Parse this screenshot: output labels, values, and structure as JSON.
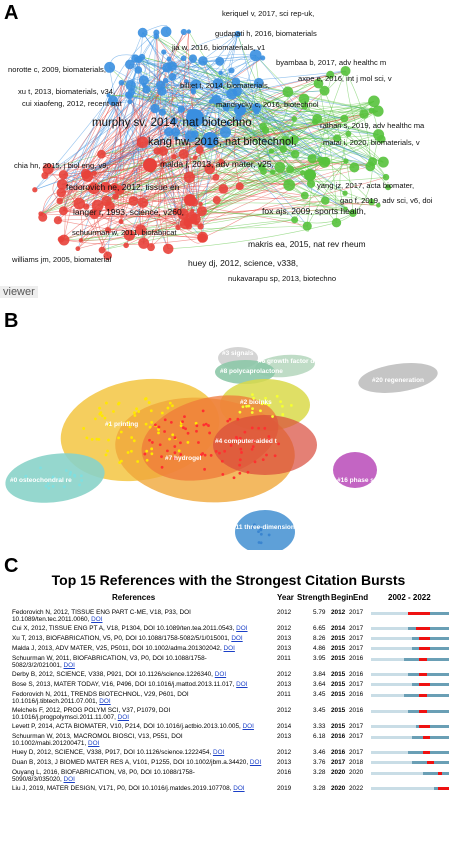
{
  "panel_a": {
    "letter": "A",
    "watermark": "viewer",
    "labels": [
      {
        "text": "keriquel v, 2017, sci rep-uk,"
      },
      {
        "text": "gudapati h, 2016, biomaterials"
      },
      {
        "text": "jia w, 2016, biomaterials, v1"
      },
      {
        "text": "byambaa b, 2017, adv healthc m"
      },
      {
        "text": "norotte c, 2009, biomaterials,"
      },
      {
        "text": "axpe e, 2016, int j mol sci, v"
      },
      {
        "text": "billiet t, 2014, biomaterials,"
      },
      {
        "text": "xu t, 2013, biomaterials, v34,"
      },
      {
        "text": "mandrycky c, 2016, biotechnol"
      },
      {
        "text": "cui xiaofeng, 2012, recent pat"
      },
      {
        "text": "murphy sv, 2014, nat biotechno"
      },
      {
        "text": "rathan s, 2019, adv healthc ma"
      },
      {
        "text": "kang hw, 2016, nat biotechnol,"
      },
      {
        "text": "matai i, 2020, biomaterials, v"
      },
      {
        "text": "chia hn, 2015, j biol eng, v9,"
      },
      {
        "text": "malda j, 2013, adv mater, v25,"
      },
      {
        "text": "fedorovich ne, 2012, tissue en"
      },
      {
        "text": "yang jz, 2017, acta biomater,"
      },
      {
        "text": "fox ajs, 2009, sports health,"
      },
      {
        "text": "gao f, 2019, adv sci, v6, doi"
      },
      {
        "text": "langer r, 1993, science, v260,"
      },
      {
        "text": "schuurman w, 2011, biofabricat"
      },
      {
        "text": "makris ea, 2015, nat rev rheum"
      },
      {
        "text": "huey dj, 2012, science, v338,"
      },
      {
        "text": "williams jm, 2005, biomaterial"
      },
      {
        "text": "nukavarapu sp, 2013, biotechno"
      }
    ]
  },
  "panel_b": {
    "letter": "B",
    "clusters": [
      {
        "label": "#3 signals"
      },
      {
        "label": "#6 growth factor de"
      },
      {
        "label": "#8 polycaprolactone"
      },
      {
        "label": "#20 regeneration"
      },
      {
        "label": "#2 bioinks"
      },
      {
        "label": "#1 printing"
      },
      {
        "label": "#4 computer-aided t"
      },
      {
        "label": "#7 hydrogel"
      },
      {
        "label": "#16 phase separation"
      },
      {
        "label": "#0 osteochondral re"
      },
      {
        "label": "#11 three-dimension"
      }
    ]
  },
  "panel_c": {
    "letter": "C",
    "title": "Top 15 References with the Strongest Citation Bursts",
    "headers": {
      "references": "References",
      "year": "Year",
      "strength": "Strength",
      "begin": "Begin",
      "end": "End",
      "range": "2002 - 2022"
    },
    "range_start": 2002,
    "range_end": 2022,
    "rows": [
      {
        "ref": "Fedorovich N, 2012, TISSUE ENG PART C-ME, V18, P33, DOI",
        "ref2": "10.1089/ten.tec.2011.0060,",
        "doi": "DOI",
        "year": "2012",
        "strength": "5.79",
        "begin": "2012",
        "end": "2017"
      },
      {
        "ref": "Cui X, 2012, TISSUE ENG PT A, V18, P1304, DOI 10.1089/ten.tea.2011.0543,",
        "ref2": "",
        "doi": "DOI",
        "year": "2012",
        "strength": "6.65",
        "begin": "2014",
        "end": "2017"
      },
      {
        "ref": "Xu T, 2013, BIOFABRICATION, V5, P0, DOI 10.1088/1758-5082/5/1/015001,",
        "ref2": "",
        "doi": "DOI",
        "year": "2013",
        "strength": "8.26",
        "begin": "2015",
        "end": "2017"
      },
      {
        "ref": "Malda J, 2013, ADV MATER, V25, P5011, DOI 10.1002/adma.201302042,",
        "ref2": "",
        "doi": "DOI",
        "year": "2013",
        "strength": "4.86",
        "begin": "2015",
        "end": "2017"
      },
      {
        "ref": "Schuurman W, 2011, BIOFABRICATION, V3, P0, DOI 10.1088/1758-",
        "ref2": "5082/3/2/021001,",
        "doi": "DOI",
        "year": "2011",
        "strength": "3.95",
        "begin": "2015",
        "end": "2016"
      },
      {
        "ref": "Derby B, 2012, SCIENCE, V338, P921, DOI 10.1126/science.1226340,",
        "ref2": "",
        "doi": "DOI",
        "year": "2012",
        "strength": "3.84",
        "begin": "2015",
        "end": "2016"
      },
      {
        "ref": "Bose S, 2013, MATER TODAY, V16, P496, DOI 10.1016/j.mattod.2013.11.017,",
        "ref2": "",
        "doi": "DOI",
        "year": "2013",
        "strength": "3.64",
        "begin": "2015",
        "end": "2017"
      },
      {
        "ref": "Fedorovich N, 2011, TRENDS BIOTECHNOL, V29, P601, DOI",
        "ref2": "10.1016/j.tibtech.2011.07.001,",
        "doi": "DOI",
        "year": "2011",
        "strength": "3.45",
        "begin": "2015",
        "end": "2016"
      },
      {
        "ref": "Melchels F, 2012, PROG POLYM SCI, V37, P1079, DOI",
        "ref2": "10.1016/j.progpolymsci.2011.11.007,",
        "doi": "DOI",
        "year": "2012",
        "strength": "3.45",
        "begin": "2015",
        "end": "2016"
      },
      {
        "ref": "Levett P, 2014, ACTA BIOMATER, V10, P214, DOI 10.1016/j.actbio.2013.10.005,",
        "ref2": "",
        "doi": "DOI",
        "year": "2014",
        "strength": "3.33",
        "begin": "2015",
        "end": "2017"
      },
      {
        "ref": "Schuurman W, 2013, MACROMOL BIOSCI, V13, P551, DOI",
        "ref2": "10.1002/mabi.201200471,",
        "doi": "DOI",
        "year": "2013",
        "strength": "6.18",
        "begin": "2016",
        "end": "2017"
      },
      {
        "ref": "Huey D, 2012, SCIENCE, V338, P917, DOI 10.1126/science.1222454,",
        "ref2": "",
        "doi": "DOI",
        "year": "2012",
        "strength": "3.46",
        "begin": "2016",
        "end": "2017"
      },
      {
        "ref": "Duan B, 2013, J BIOMED MATER RES A, V101, P1255, DOI 10.1002/jbm.a.34420,",
        "ref2": "",
        "doi": "DOI",
        "year": "2013",
        "strength": "3.76",
        "begin": "2017",
        "end": "2018"
      },
      {
        "ref": "Ouyang L, 2016, BIOFABRICATION, V8, P0, DOI 10.1088/1758-",
        "ref2": "5090/8/3/035020,",
        "doi": "DOI",
        "year": "2016",
        "strength": "3.28",
        "begin": "2020",
        "end": "2020"
      },
      {
        "ref": "Liu J, 2019, MATER DESIGN, V171, P0, DOI 10.1016/j.matdes.2019.107708,",
        "ref2": "",
        "doi": "DOI",
        "year": "2019",
        "strength": "3.28",
        "begin": "2020",
        "end": "2022"
      }
    ]
  },
  "colors": {
    "blue": "#3a8fe0",
    "red": "#e8413a",
    "green": "#56c23c",
    "burst": "#ee1111",
    "timeline": "#6a9fb5",
    "doi_link": "#1a3fc7"
  }
}
